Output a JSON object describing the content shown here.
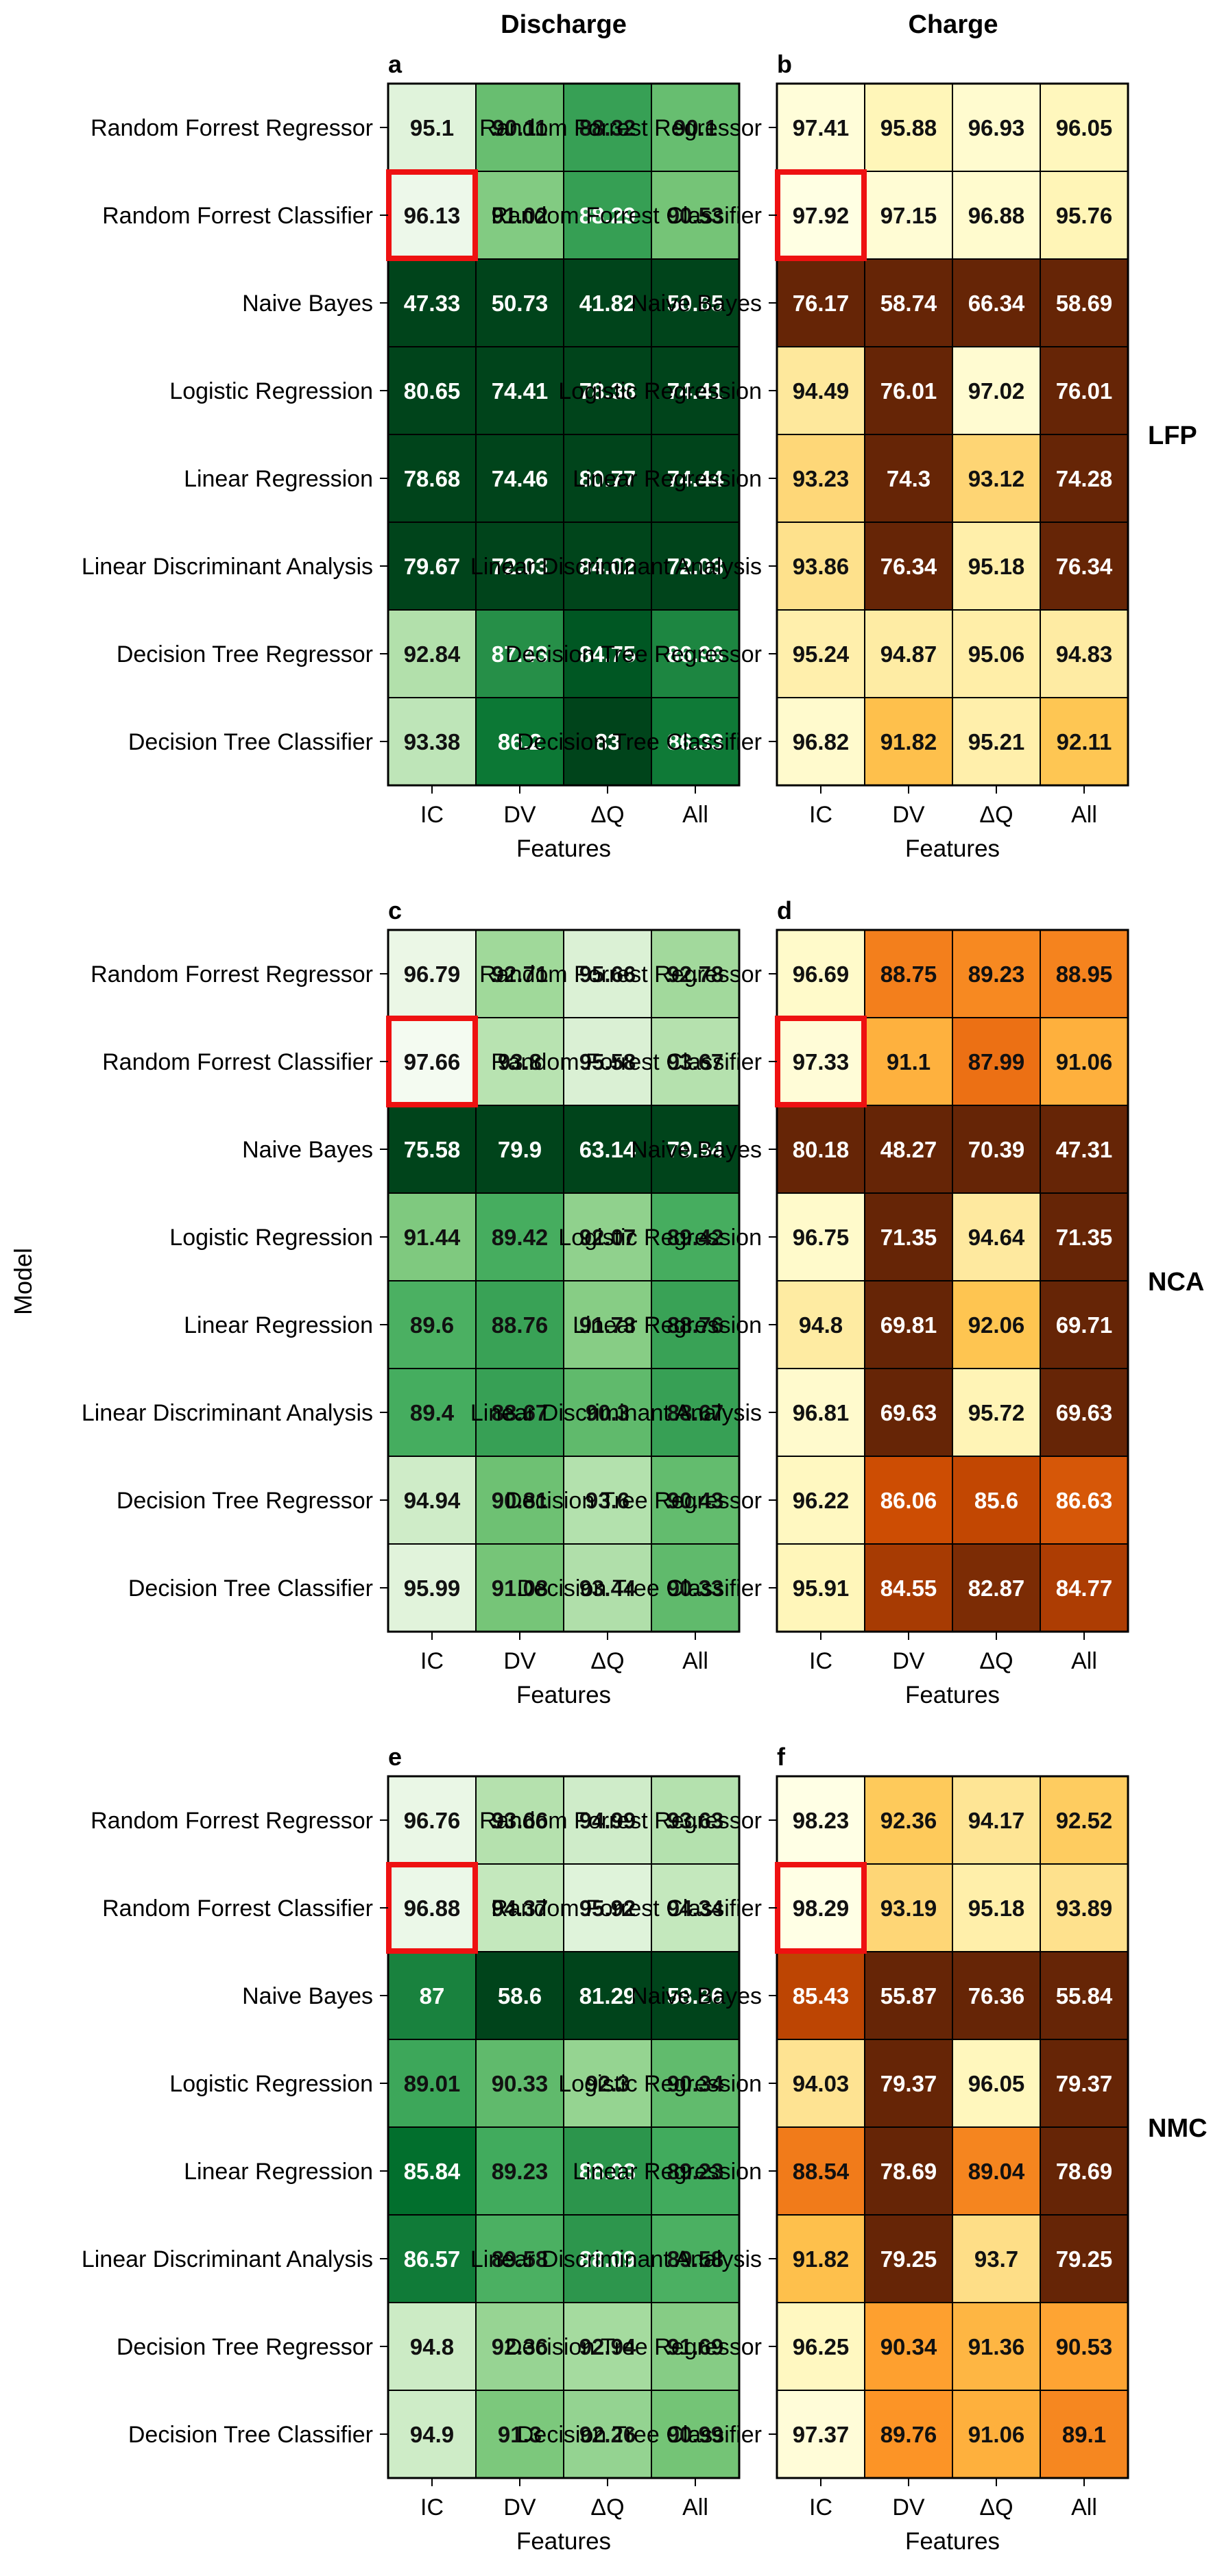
{
  "figure": {
    "column_titles": [
      "Discharge",
      "Charge"
    ],
    "row_labels": [
      "LFP",
      "NCA",
      "NMC"
    ],
    "ylabel": "Model",
    "xlabel": "Features"
  },
  "colors": {
    "greens": [
      "#f7fcf5",
      "#e5f5e0",
      "#c7e9c0",
      "#a1d99b",
      "#74c476",
      "#41ab5d",
      "#238b45",
      "#006d2c",
      "#00441b"
    ],
    "oranges": [
      "#ffffe5",
      "#fff7bc",
      "#fee391",
      "#fec44f",
      "#fe9929",
      "#ec7014",
      "#cc4c02",
      "#993404",
      "#662506"
    ],
    "highlight": "#ee1111"
  },
  "chart_data": [
    {
      "panel": "a",
      "battery": "LFP",
      "mode": "Discharge",
      "type": "heatmap",
      "colormap": "greens",
      "xlabel": "Features",
      "x": [
        "IC",
        "DV",
        "ΔQ",
        "All"
      ],
      "y": [
        "Random Forrest Regressor",
        "Random Forrest Classifier",
        "Naive Bayes",
        "Logistic Regression",
        "Linear Regression",
        "Linear Discriminant Analysis",
        "Decision Tree Regressor",
        "Decision Tree Classifier"
      ],
      "values": [
        [
          "95.1",
          "90.11",
          "88.32",
          "90.1"
        ],
        [
          "96.13",
          "91.02",
          "88.29",
          "90.53"
        ],
        [
          "47.33",
          "50.73",
          "41.82",
          "50.65"
        ],
        [
          "80.65",
          "74.41",
          "78.38",
          "74.41"
        ],
        [
          "78.68",
          "74.46",
          "80.77",
          "74.44"
        ],
        [
          "79.67",
          "72.03",
          "84.02",
          "72.03"
        ],
        [
          "92.84",
          "87.43",
          "84.75",
          "86.96"
        ],
        [
          "93.38",
          "86.2",
          "83",
          "86.33"
        ]
      ],
      "vrange": [
        84,
        97
      ],
      "highlight": [
        1,
        0
      ]
    },
    {
      "panel": "b",
      "battery": "LFP",
      "mode": "Charge",
      "type": "heatmap",
      "colormap": "oranges",
      "xlabel": "Features",
      "x": [
        "IC",
        "DV",
        "ΔQ",
        "All"
      ],
      "y": [
        "Random Forrest Regressor",
        "Random Forrest Classifier",
        "Naive Bayes",
        "Logistic Regression",
        "Linear Regression",
        "Linear Discriminant Analysis",
        "Decision Tree Regressor",
        "Decision Tree Classifier"
      ],
      "values": [
        [
          "97.41",
          "95.88",
          "96.93",
          "96.05"
        ],
        [
          "97.92",
          "97.15",
          "96.88",
          "95.76"
        ],
        [
          "76.17",
          "58.74",
          "66.34",
          "58.69"
        ],
        [
          "94.49",
          "76.01",
          "97.02",
          "76.01"
        ],
        [
          "93.23",
          "74.3",
          "93.12",
          "74.28"
        ],
        [
          "93.86",
          "76.34",
          "95.18",
          "76.34"
        ],
        [
          "95.24",
          "94.87",
          "95.06",
          "94.83"
        ],
        [
          "96.82",
          "91.82",
          "95.21",
          "92.11"
        ]
      ],
      "vrange": [
        82,
        98
      ],
      "highlight": [
        1,
        0
      ]
    },
    {
      "panel": "c",
      "battery": "NCA",
      "mode": "Discharge",
      "type": "heatmap",
      "colormap": "greens",
      "xlabel": "Features",
      "x": [
        "IC",
        "DV",
        "ΔQ",
        "All"
      ],
      "y": [
        "Random Forrest Regressor",
        "Random Forrest Classifier",
        "Naive Bayes",
        "Logistic Regression",
        "Linear Regression",
        "Linear Discriminant Analysis",
        "Decision Tree Regressor",
        "Decision Tree Classifier"
      ],
      "values": [
        [
          "96.79",
          "92.71",
          "95.66",
          "92.78"
        ],
        [
          "97.66",
          "93.8",
          "95.58",
          "93.67"
        ],
        [
          "75.58",
          "79.9",
          "63.14",
          "79.94"
        ],
        [
          "91.44",
          "89.42",
          "92.07",
          "89.42"
        ],
        [
          "89.6",
          "88.76",
          "91.73",
          "88.76"
        ],
        [
          "89.4",
          "88.67",
          "90.3",
          "88.67"
        ],
        [
          "94.94",
          "90.81",
          "93.6",
          "90.43"
        ],
        [
          "95.99",
          "91.08",
          "93.44",
          "90.33"
        ]
      ],
      "vrange": [
        84,
        98
      ],
      "highlight": [
        1,
        0
      ]
    },
    {
      "panel": "d",
      "battery": "NCA",
      "mode": "Charge",
      "type": "heatmap",
      "colormap": "oranges",
      "xlabel": "Features",
      "x": [
        "IC",
        "DV",
        "ΔQ",
        "All"
      ],
      "y": [
        "Random Forrest Regressor",
        "Random Forrest Classifier",
        "Naive Bayes",
        "Logistic Regression",
        "Linear Regression",
        "Linear Discriminant Analysis",
        "Decision Tree Regressor",
        "Decision Tree Classifier"
      ],
      "values": [
        [
          "96.69",
          "88.75",
          "89.23",
          "88.95"
        ],
        [
          "97.33",
          "91.1",
          "87.99",
          "91.06"
        ],
        [
          "80.18",
          "48.27",
          "70.39",
          "47.31"
        ],
        [
          "96.75",
          "71.35",
          "94.64",
          "71.35"
        ],
        [
          "94.8",
          "69.81",
          "92.06",
          "69.71"
        ],
        [
          "96.81",
          "69.63",
          "95.72",
          "69.63"
        ],
        [
          "96.22",
          "86.06",
          "85.6",
          "86.63"
        ],
        [
          "95.91",
          "84.55",
          "82.87",
          "84.77"
        ]
      ],
      "vrange": [
        82,
        98
      ],
      "highlight": [
        1,
        0
      ]
    },
    {
      "panel": "e",
      "battery": "NMC",
      "mode": "Discharge",
      "type": "heatmap",
      "colormap": "greens",
      "xlabel": "Features",
      "x": [
        "IC",
        "DV",
        "ΔQ",
        "All"
      ],
      "y": [
        "Random Forrest Regressor",
        "Random Forrest Classifier",
        "Naive Bayes",
        "Logistic Regression",
        "Linear Regression",
        "Linear Discriminant Analysis",
        "Decision Tree Regressor",
        "Decision Tree Classifier"
      ],
      "values": [
        [
          "96.76",
          "93.66",
          "94.99",
          "93.63"
        ],
        [
          "96.88",
          "94.37",
          "95.92",
          "94.34"
        ],
        [
          "87",
          "58.6",
          "81.29",
          "58.26"
        ],
        [
          "89.01",
          "90.33",
          "92.3",
          "90.34"
        ],
        [
          "85.84",
          "89.23",
          "88.03",
          "89.23"
        ],
        [
          "86.57",
          "89.58",
          "88.09",
          "89.58"
        ],
        [
          "94.8",
          "92.36",
          "92.94",
          "91.69"
        ],
        [
          "94.9",
          "91.3",
          "92.26",
          "90.99"
        ]
      ],
      "vrange": [
        84,
        98
      ],
      "highlight": [
        1,
        0
      ]
    },
    {
      "panel": "f",
      "battery": "NMC",
      "mode": "Charge",
      "type": "heatmap",
      "colormap": "oranges",
      "xlabel": "Features",
      "x": [
        "IC",
        "DV",
        "ΔQ",
        "All"
      ],
      "y": [
        "Random Forrest Regressor",
        "Random Forrest Classifier",
        "Naive Bayes",
        "Logistic Regression",
        "Linear Regression",
        "Linear Discriminant Analysis",
        "Decision Tree Regressor",
        "Decision Tree Classifier"
      ],
      "values": [
        [
          "98.23",
          "92.36",
          "94.17",
          "92.52"
        ],
        [
          "98.29",
          "93.19",
          "95.18",
          "93.89"
        ],
        [
          "85.43",
          "55.87",
          "76.36",
          "55.84"
        ],
        [
          "94.03",
          "79.37",
          "96.05",
          "79.37"
        ],
        [
          "88.54",
          "78.69",
          "89.04",
          "78.69"
        ],
        [
          "91.82",
          "79.25",
          "93.7",
          "79.25"
        ],
        [
          "96.25",
          "90.34",
          "91.36",
          "90.53"
        ],
        [
          "97.37",
          "89.76",
          "91.06",
          "89.1"
        ]
      ],
      "vrange": [
        82,
        98
      ],
      "highlight": [
        1,
        0
      ]
    }
  ]
}
